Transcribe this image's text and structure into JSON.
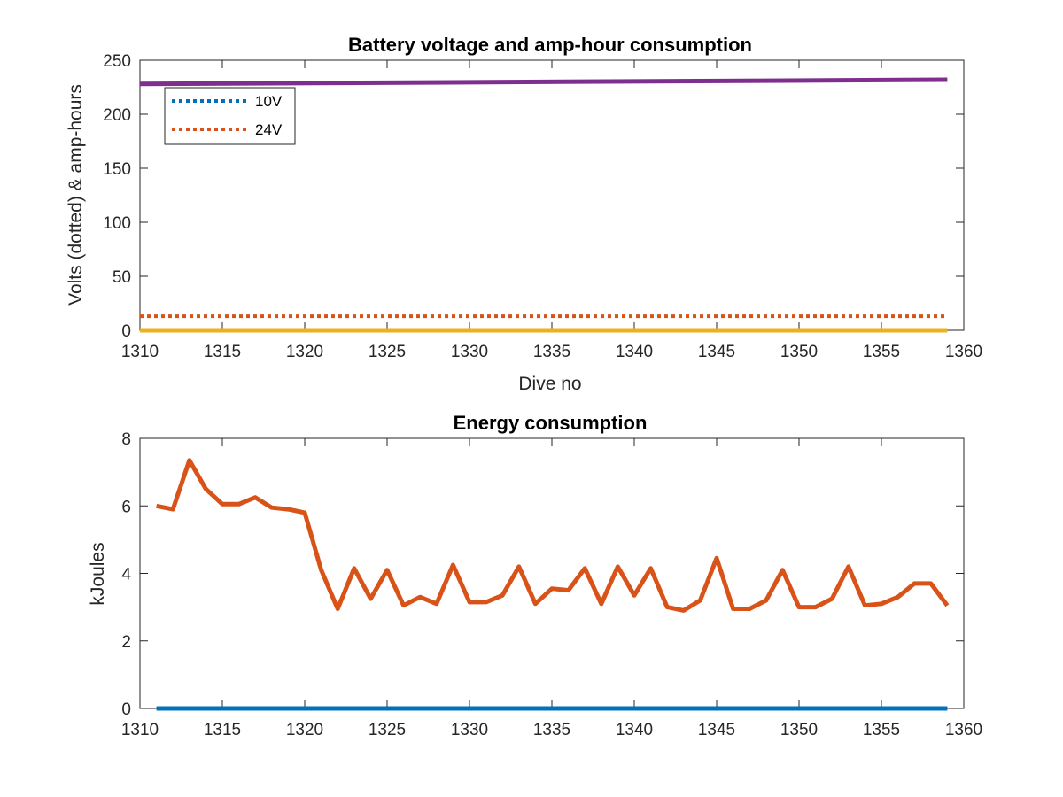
{
  "chart_data": [
    {
      "type": "line",
      "title": "Battery voltage and amp-hour consumption",
      "xlabel": "Dive no",
      "ylabel": "Volts (dotted) & amp-hours",
      "xlim": [
        1310,
        1360
      ],
      "ylim": [
        0,
        250
      ],
      "xticks": [
        1310,
        1315,
        1320,
        1325,
        1330,
        1335,
        1340,
        1345,
        1350,
        1355,
        1360
      ],
      "yticks": [
        0,
        50,
        100,
        150,
        200,
        250
      ],
      "grid": false,
      "legend_position": "top-left",
      "series": [
        {
          "name": "10V",
          "style": "dotted",
          "color": "#0072bd",
          "x": [
            1310,
            1359
          ],
          "y": [
            0,
            0
          ]
        },
        {
          "name": "24V",
          "style": "dotted",
          "color": "#d95319",
          "x": [
            1310,
            1359
          ],
          "y": [
            13,
            13
          ]
        },
        {
          "style": "solid",
          "color": "#edb120",
          "x": [
            1310,
            1359
          ],
          "y": [
            0,
            0
          ]
        },
        {
          "style": "solid",
          "color": "#7e2f8e",
          "x": [
            1310,
            1359
          ],
          "y": [
            228,
            232
          ]
        }
      ]
    },
    {
      "type": "line",
      "title": "Energy consumption",
      "xlabel": "",
      "ylabel": "kJoules",
      "xlim": [
        1310,
        1360
      ],
      "ylim": [
        0,
        8
      ],
      "xticks": [
        1310,
        1315,
        1320,
        1325,
        1330,
        1335,
        1340,
        1345,
        1350,
        1355,
        1360
      ],
      "yticks": [
        0,
        2,
        4,
        6,
        8
      ],
      "grid": false,
      "series": [
        {
          "style": "solid",
          "color": "#0072bd",
          "x": [
            1311,
            1359
          ],
          "y": [
            0,
            0
          ]
        },
        {
          "style": "solid",
          "color": "#d95319",
          "x": [
            1311,
            1312,
            1313,
            1314,
            1315,
            1316,
            1317,
            1318,
            1319,
            1320,
            1321,
            1322,
            1323,
            1324,
            1325,
            1326,
            1327,
            1328,
            1329,
            1330,
            1331,
            1332,
            1333,
            1334,
            1335,
            1336,
            1337,
            1338,
            1339,
            1340,
            1341,
            1342,
            1343,
            1344,
            1345,
            1346,
            1347,
            1348,
            1349,
            1350,
            1351,
            1352,
            1353,
            1354,
            1355,
            1356,
            1357,
            1358,
            1359
          ],
          "y": [
            6.0,
            5.9,
            7.35,
            6.5,
            6.05,
            6.05,
            6.25,
            5.95,
            5.9,
            5.8,
            4.1,
            2.95,
            4.15,
            3.25,
            4.1,
            3.05,
            3.3,
            3.1,
            4.25,
            3.15,
            3.15,
            3.35,
            4.2,
            3.1,
            3.55,
            3.5,
            4.15,
            3.1,
            4.2,
            3.35,
            4.15,
            3.0,
            2.9,
            3.2,
            4.45,
            2.95,
            2.95,
            3.2,
            4.1,
            3.0,
            3.0,
            3.25,
            4.2,
            3.05,
            3.1,
            3.3,
            3.7,
            3.7,
            3.05
          ]
        }
      ]
    }
  ]
}
